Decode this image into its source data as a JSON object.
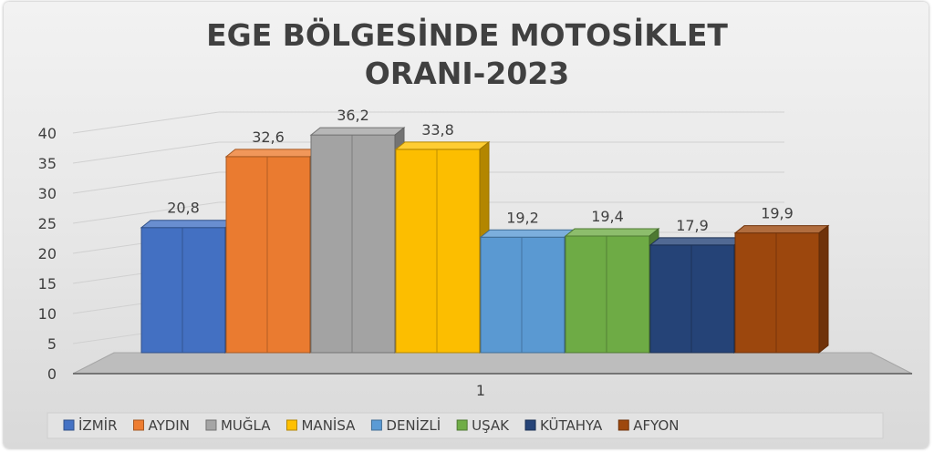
{
  "chart_data": {
    "type": "bar",
    "title_lines": [
      "EGE BÖLGESİNDE MOTOSİKLET",
      "ORANI-2023"
    ],
    "categories": [
      "1"
    ],
    "series": [
      {
        "name": "İZMİR",
        "values": [
          20.8
        ],
        "label": "20,8",
        "color": "#4472c4"
      },
      {
        "name": "AYDIN",
        "values": [
          32.6
        ],
        "label": "32,6",
        "color": "#ed7d31"
      },
      {
        "name": "MUĞLA",
        "values": [
          36.2
        ],
        "label": "36,2",
        "color": "#a5a5a5"
      },
      {
        "name": "MANİSA",
        "values": [
          33.8
        ],
        "label": "33,8",
        "color": "#ffc000"
      },
      {
        "name": "DENİZLİ",
        "values": [
          19.2
        ],
        "label": "19,2",
        "color": "#5b9bd5"
      },
      {
        "name": "UŞAK",
        "values": [
          19.4
        ],
        "label": "19,4",
        "color": "#70ad47"
      },
      {
        "name": "KÜTAHYA",
        "values": [
          17.9
        ],
        "label": "17,9",
        "color": "#264478"
      },
      {
        "name": "AFYON",
        "values": [
          19.9
        ],
        "label": "19,9",
        "color": "#9e480e"
      }
    ],
    "y_ticks": [
      "0",
      "5",
      "10",
      "15",
      "20",
      "25",
      "30",
      "35",
      "40"
    ],
    "ylim": [
      0,
      40
    ],
    "grid": true,
    "legend_position": "bottom",
    "style": "3d-clustered-column"
  }
}
